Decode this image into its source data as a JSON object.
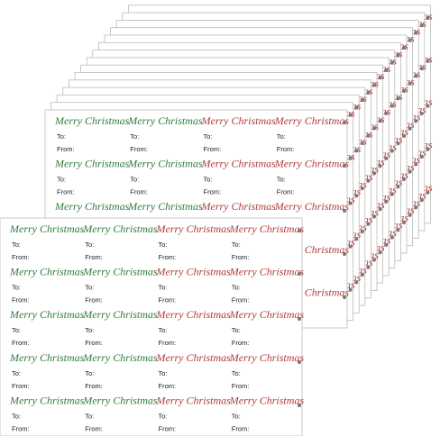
{
  "label": {
    "greeting": "Merry Christmas",
    "to": "To:",
    "from": "From:"
  }
}
